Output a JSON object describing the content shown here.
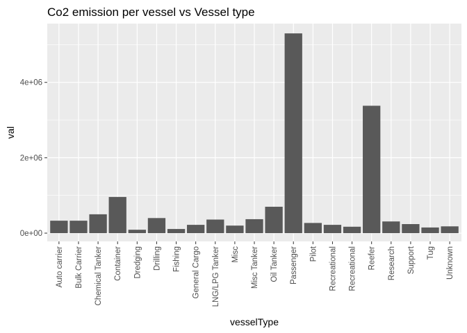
{
  "chart_data": {
    "type": "bar",
    "title": "Co2 emission per vessel vs Vessel type",
    "xlabel": "vesselType",
    "ylabel": "val",
    "categories": [
      "Auto carrier",
      "Bulk Carrier",
      "Chemical Tanker",
      "Container",
      "Dredging",
      "Drilling",
      "Fishing",
      "General Cargo",
      "LNG/LPG Tanker",
      "Misc",
      "Misc Tanker",
      "Oil Tanker",
      "Passenger",
      "Pilot",
      "Recreational",
      "Recreational",
      "Reefer",
      "Research",
      "Support",
      "Tug",
      "Unknown"
    ],
    "values": [
      330000,
      330000,
      500000,
      960000,
      90000,
      400000,
      110000,
      220000,
      360000,
      200000,
      370000,
      700000,
      5300000,
      270000,
      220000,
      170000,
      3380000,
      310000,
      240000,
      150000,
      180000
    ],
    "ylim": [
      -220000,
      5560000
    ],
    "yticks": [
      0,
      2000000,
      4000000
    ],
    "ytick_labels": [
      "0e+00",
      "2e+06",
      "4e+06"
    ],
    "grid": true,
    "bar_color": "#595959",
    "panel_color": "#EBEBEB",
    "grid_color": "#FFFFFF"
  }
}
